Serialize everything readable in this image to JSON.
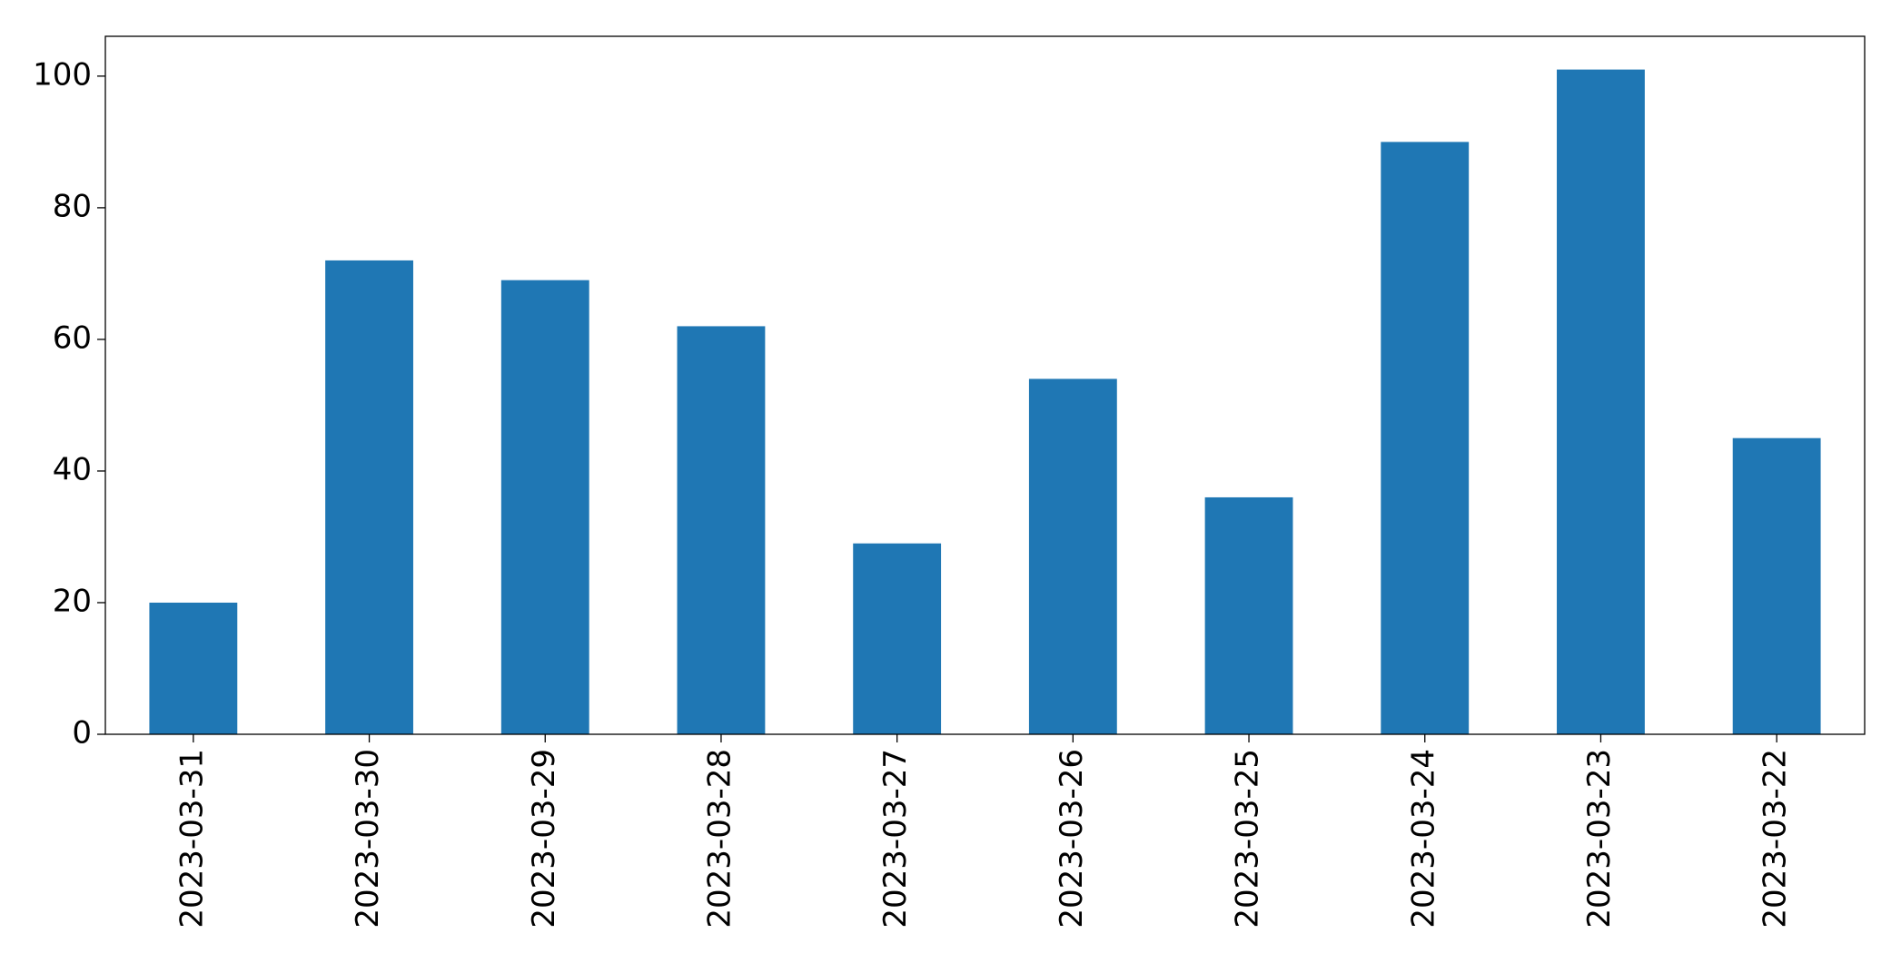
{
  "chart_data": {
    "type": "bar",
    "categories": [
      "2023-03-31",
      "2023-03-30",
      "2023-03-29",
      "2023-03-28",
      "2023-03-27",
      "2023-03-26",
      "2023-03-25",
      "2023-03-24",
      "2023-03-23",
      "2023-03-22"
    ],
    "values": [
      20,
      72,
      69,
      62,
      29,
      54,
      36,
      90,
      101,
      45
    ],
    "color": "#1f77b4",
    "ylim": [
      0,
      106.05
    ],
    "yticks": [
      0,
      20,
      40,
      60,
      80,
      100
    ],
    "grid": false
  }
}
